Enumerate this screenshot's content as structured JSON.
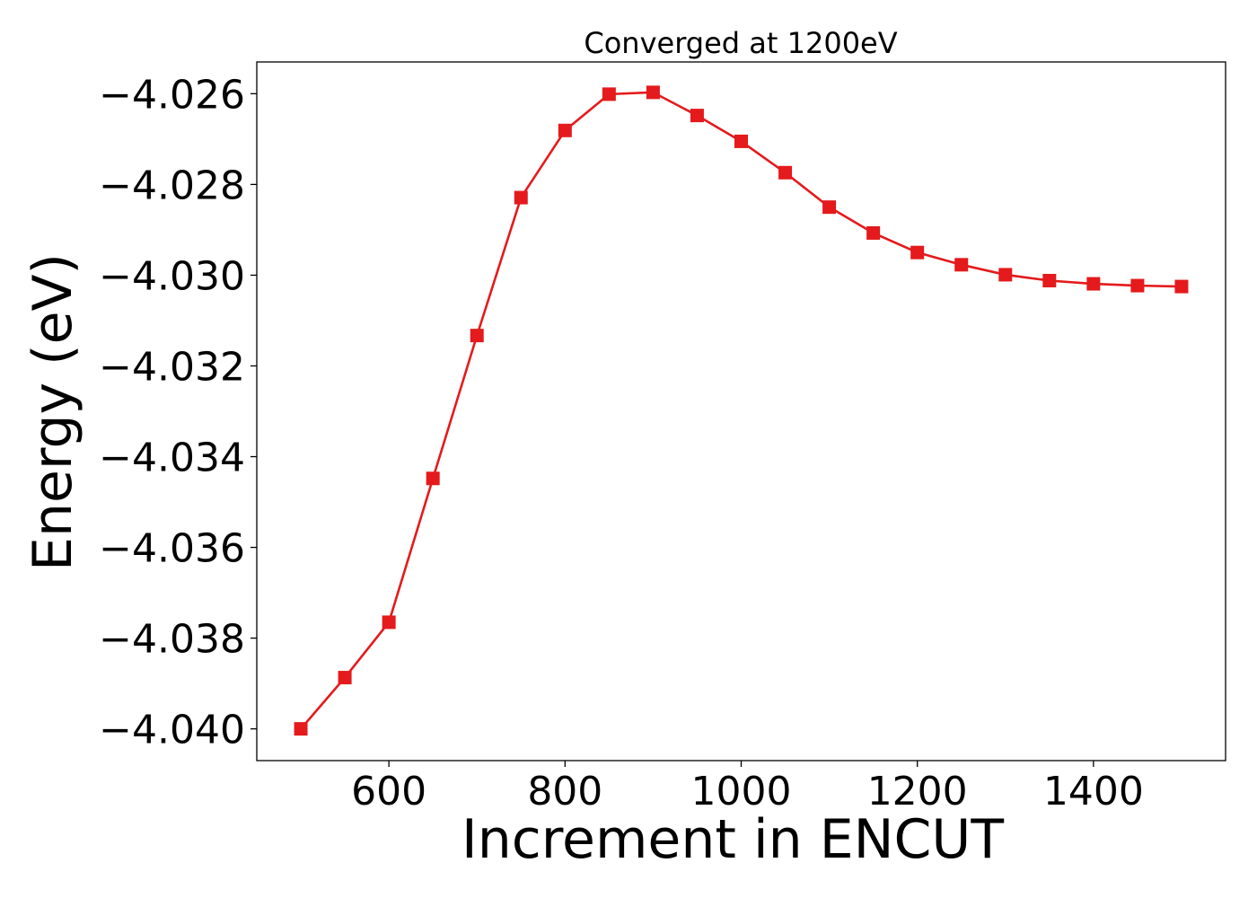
{
  "chart_data": {
    "type": "line",
    "title": "Converged at 1200eV",
    "xlabel": "Increment in ENCUT",
    "ylabel": "Energy (eV)",
    "xlim": [
      450,
      1550
    ],
    "ylim": [
      -4.0407,
      -4.0253
    ],
    "xticks": [
      600,
      800,
      1000,
      1200,
      1400
    ],
    "xtick_labels": [
      "600",
      "800",
      "1000",
      "1200",
      "1400"
    ],
    "yticks": [
      -4.026,
      -4.028,
      -4.03,
      -4.032,
      -4.034,
      -4.036,
      -4.038,
      -4.04
    ],
    "ytick_labels": [
      "−4.026",
      "−4.028",
      "−4.030",
      "−4.032",
      "−4.034",
      "−4.036",
      "−4.038",
      "−4.040"
    ],
    "grid": false,
    "marker": "square",
    "color": "#e41a1c",
    "series": [
      {
        "x": [
          500,
          550,
          600,
          650,
          700,
          750,
          800,
          850,
          900,
          950,
          1000,
          1050,
          1100,
          1150,
          1200,
          1250,
          1300,
          1350,
          1400,
          1450,
          1500
        ],
        "y": [
          -4.04,
          -4.03887,
          -4.03765,
          -4.03448,
          -4.03133,
          -4.02829,
          -4.02681,
          -4.02601,
          -4.02597,
          -4.02648,
          -4.02705,
          -4.02774,
          -4.0285,
          -4.02907,
          -4.0295,
          -4.02977,
          -4.02999,
          -4.03012,
          -4.03019,
          -4.03023,
          -4.03025
        ]
      }
    ]
  }
}
